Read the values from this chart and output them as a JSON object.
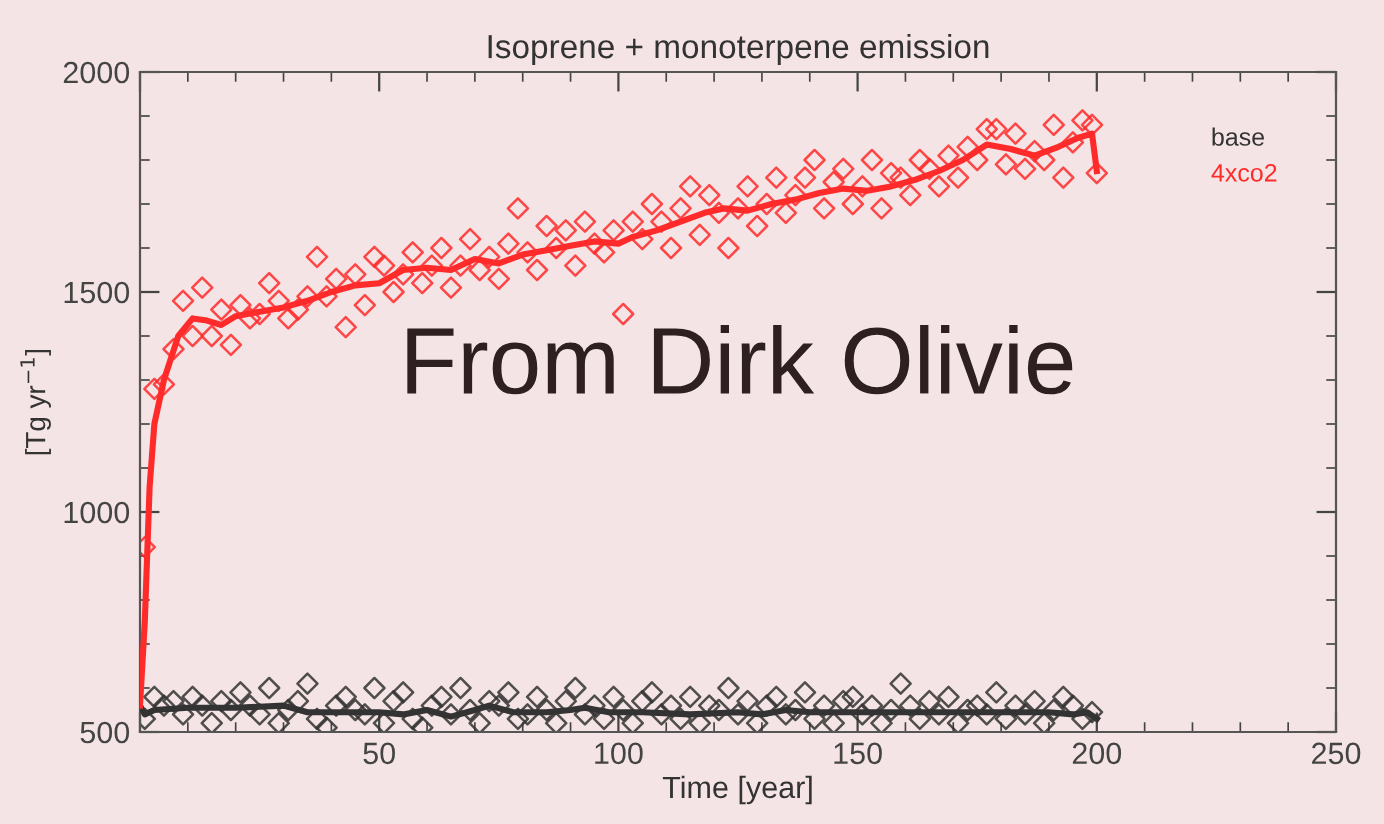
{
  "chart_data": {
    "type": "scatter",
    "title": "Isoprene + monoterpene emission",
    "xlabel": "Time [year]",
    "ylabel": "[Tg yr$^{−1}$]",
    "xlim": [
      0,
      250
    ],
    "xticks": [
      {
        "value": 0,
        "label": null
      },
      50,
      100,
      150,
      200,
      250
    ],
    "ylim": [
      500,
      2000
    ],
    "yticks": [
      500,
      1000,
      1500,
      2000
    ],
    "grid": false,
    "legend": "top right",
    "annotations": [
      "From Dirk Olivie"
    ],
    "series": [
      {
        "name": "base",
        "type": "line",
        "color": "#333333",
        "x": [
          0,
          1,
          3,
          10,
          20,
          30,
          35,
          45,
          50,
          55,
          60,
          65,
          70,
          73,
          78,
          85,
          90,
          93,
          98,
          105,
          115,
          125,
          130,
          135,
          140,
          150,
          160,
          170,
          180,
          190,
          195,
          198,
          200
        ],
        "values": [
          560,
          540,
          550,
          555,
          555,
          560,
          545,
          545,
          545,
          540,
          550,
          535,
          550,
          560,
          545,
          545,
          550,
          555,
          545,
          545,
          540,
          545,
          540,
          550,
          545,
          545,
          545,
          545,
          545,
          545,
          540,
          545,
          530
        ]
      },
      {
        "name": "4xco2",
        "type": "line",
        "color": "#ff2a2a",
        "x": [
          0,
          1,
          2,
          3,
          5,
          8,
          11,
          14,
          17,
          20,
          25,
          30,
          35,
          40,
          45,
          50,
          55,
          60,
          65,
          70,
          75,
          80,
          85,
          90,
          95,
          100,
          103,
          108,
          113,
          118,
          122,
          127,
          132,
          137,
          142,
          147,
          152,
          157,
          162,
          167,
          172,
          177,
          182,
          187,
          192,
          196,
          199,
          200
        ],
        "values": [
          560,
          750,
          1055,
          1200,
          1300,
          1400,
          1440,
          1435,
          1425,
          1445,
          1455,
          1465,
          1480,
          1500,
          1515,
          1520,
          1550,
          1555,
          1550,
          1575,
          1565,
          1585,
          1595,
          1605,
          1615,
          1610,
          1625,
          1640,
          1660,
          1680,
          1690,
          1685,
          1700,
          1710,
          1725,
          1735,
          1730,
          1740,
          1755,
          1775,
          1800,
          1835,
          1825,
          1810,
          1830,
          1850,
          1860,
          1775
        ]
      },
      {
        "marker": "diamond",
        "color": "#333333",
        "x": [
          1,
          3,
          5,
          7,
          9,
          11,
          13,
          15,
          17,
          19,
          21,
          23,
          25,
          27,
          29,
          31,
          33,
          35,
          37,
          39,
          41,
          43,
          45,
          47,
          49,
          51,
          53,
          55,
          57,
          59,
          61,
          63,
          65,
          67,
          69,
          71,
          73,
          75,
          77,
          79,
          81,
          83,
          85,
          87,
          89,
          91,
          93,
          95,
          97,
          99,
          101,
          103,
          105,
          107,
          109,
          111,
          113,
          115,
          117,
          119,
          121,
          123,
          125,
          127,
          129,
          131,
          133,
          135,
          137,
          139,
          141,
          143,
          145,
          147,
          149,
          151,
          153,
          155,
          157,
          159,
          161,
          163,
          165,
          167,
          169,
          171,
          173,
          175,
          177,
          179,
          181,
          183,
          185,
          187,
          189,
          191,
          193,
          195,
          197,
          199
        ],
        "values": [
          530,
          580,
          560,
          570,
          540,
          580,
          560,
          520,
          570,
          550,
          590,
          560,
          540,
          600,
          520,
          550,
          570,
          610,
          530,
          510,
          560,
          580,
          550,
          540,
          600,
          520,
          570,
          590,
          530,
          510,
          560,
          580,
          540,
          600,
          550,
          520,
          570,
          560,
          590,
          530,
          540,
          580,
          550,
          520,
          570,
          600,
          540,
          560,
          530,
          580,
          550,
          520,
          570,
          590,
          540,
          560,
          530,
          580,
          520,
          560,
          550,
          600,
          540,
          570,
          520,
          560,
          580,
          540,
          550,
          590,
          530,
          560,
          520,
          570,
          580,
          540,
          560,
          520,
          550,
          610,
          560,
          530,
          570,
          540,
          580,
          520,
          550,
          560,
          540,
          590,
          530,
          560,
          540,
          570,
          520,
          550,
          580,
          560,
          530,
          545
        ]
      },
      {
        "marker": "diamond",
        "color": "#ff2a2a",
        "x": [
          1,
          3,
          5,
          7,
          9,
          11,
          13,
          15,
          17,
          19,
          21,
          23,
          25,
          27,
          29,
          31,
          33,
          35,
          37,
          39,
          41,
          43,
          45,
          47,
          49,
          51,
          53,
          55,
          57,
          59,
          61,
          63,
          65,
          67,
          69,
          71,
          73,
          75,
          77,
          79,
          81,
          83,
          85,
          87,
          89,
          91,
          93,
          95,
          97,
          99,
          101,
          103,
          105,
          107,
          109,
          111,
          113,
          115,
          117,
          119,
          121,
          123,
          125,
          127,
          129,
          131,
          133,
          135,
          137,
          139,
          141,
          143,
          145,
          147,
          149,
          151,
          153,
          155,
          157,
          159,
          161,
          163,
          165,
          167,
          169,
          171,
          173,
          175,
          177,
          179,
          181,
          183,
          185,
          187,
          189,
          191,
          193,
          195,
          197,
          199,
          200
        ],
        "values": [
          920,
          1280,
          1290,
          1370,
          1480,
          1400,
          1510,
          1400,
          1460,
          1380,
          1470,
          1440,
          1450,
          1520,
          1480,
          1440,
          1460,
          1490,
          1580,
          1490,
          1530,
          1420,
          1540,
          1470,
          1580,
          1560,
          1500,
          1540,
          1590,
          1520,
          1560,
          1600,
          1510,
          1560,
          1620,
          1550,
          1580,
          1530,
          1610,
          1690,
          1590,
          1550,
          1650,
          1600,
          1640,
          1560,
          1660,
          1610,
          1590,
          1640,
          1450,
          1660,
          1620,
          1700,
          1660,
          1600,
          1690,
          1740,
          1630,
          1720,
          1680,
          1600,
          1690,
          1740,
          1650,
          1700,
          1760,
          1680,
          1720,
          1760,
          1800,
          1690,
          1750,
          1780,
          1700,
          1740,
          1800,
          1690,
          1770,
          1760,
          1720,
          1800,
          1780,
          1740,
          1810,
          1760,
          1830,
          1800,
          1870,
          1870,
          1790,
          1860,
          1780,
          1820,
          1800,
          1880,
          1760,
          1840,
          1890,
          1880,
          1770
        ]
      }
    ]
  }
}
